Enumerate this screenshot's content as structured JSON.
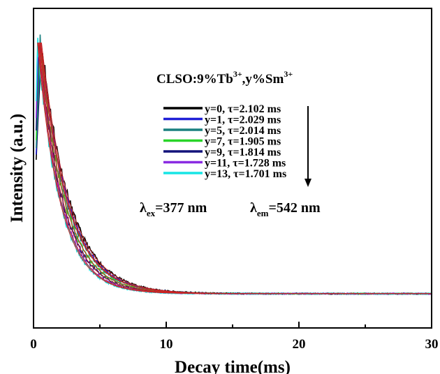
{
  "chart_data": {
    "type": "line",
    "title": "",
    "xlabel": "Decay time(ms)",
    "ylabel": "Intensity (a.u.)",
    "xlim": [
      0,
      30
    ],
    "ylim": [
      0,
      1.12
    ],
    "x_ticks": [
      "0",
      "10",
      "20",
      "30"
    ],
    "y_ticks_labeled": false,
    "grid": false,
    "legend_position": "upper-center",
    "annotations": {
      "sample_label": {
        "main": "CLSO:9%Tb",
        "sup1": "3+",
        "mid": ",y%Sm",
        "sup2": "3+"
      },
      "excitation": {
        "symbol": "λ",
        "sub": "ex",
        "value": "=377 nm"
      },
      "emission": {
        "symbol": "λ",
        "sub": "em",
        "value": "=542 nm"
      },
      "trend_arrow": "down"
    },
    "series": [
      {
        "name": "y=0, τ=2.102 ms",
        "tau": 2.102,
        "color": "#000000"
      },
      {
        "name": "y=1, τ=2.029 ms",
        "tau": 2.029,
        "color": "#1f1fd6"
      },
      {
        "name": "y=5, τ=2.014 ms",
        "tau": 2.014,
        "color": "#1a8080"
      },
      {
        "name": "y=7, τ=1.905 ms",
        "tau": 1.905,
        "color": "#28d428"
      },
      {
        "name": "y=9, τ=1.814 ms",
        "tau": 1.814,
        "color": "#12127a"
      },
      {
        "name": "y=11, τ=1.728 ms",
        "tau": 1.728,
        "color": "#8a2be2"
      },
      {
        "name": "y=13, τ=1.701 ms",
        "tau": 1.701,
        "color": "#17e5e5"
      }
    ],
    "fit_line_color": "#cc2222",
    "baseline": 0.12,
    "peak": 1.0,
    "peak_time": 0.6,
    "x_end": 30
  }
}
